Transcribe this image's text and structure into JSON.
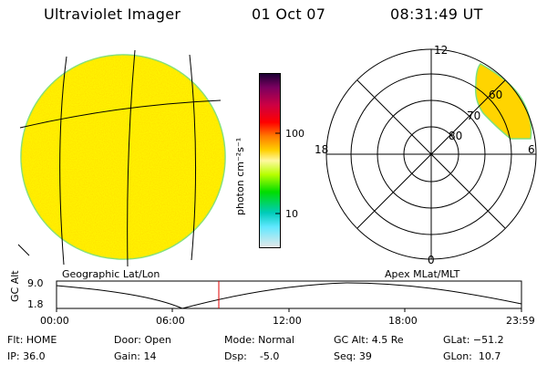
{
  "header": {
    "instrument": "Ultraviolet Imager",
    "date": "01 Oct 07",
    "time": "08:31:49 UT"
  },
  "geo_panel": {
    "label": "Geographic Lat/Lon"
  },
  "apex_panel": {
    "label": "Apex MLat/MLT",
    "mlt_labels": {
      "top": "12",
      "left": "18",
      "right": "6",
      "bottom": "0"
    },
    "lat_labels": [
      "80",
      "70",
      "60"
    ]
  },
  "colorbar": {
    "unit_label": "photon cm⁻²s⁻¹",
    "ticks": [
      "100",
      "10"
    ],
    "colors": [
      "#1a0033",
      "#7a0060",
      "#cc0044",
      "#ff0000",
      "#ff7a00",
      "#ffd000",
      "#fff8a0",
      "#b8ff00",
      "#00dd00",
      "#00ccbb",
      "#60e8ff",
      "#e8e8e8"
    ]
  },
  "altitude_plot": {
    "ylabel": "GC Alt",
    "ymax_label": "9.0",
    "ymin_label": "1.8",
    "time_labels": [
      "00:00",
      "06:00",
      "12:00",
      "18:00",
      "23:59"
    ],
    "current_time_marker": "08:31:49"
  },
  "status": {
    "flt": "Flt: HOME",
    "ip": "IP: 36.0",
    "door": "Door: Open",
    "gain": "Gain: 14",
    "mode": "Mode: Normal",
    "dsp": "Dsp:    -5.0",
    "gc_alt": "GC Alt: 4.5 Re",
    "seq": "Seq: 39",
    "glat": "GLat: −51.2",
    "glon": "GLon:  10.7"
  }
}
